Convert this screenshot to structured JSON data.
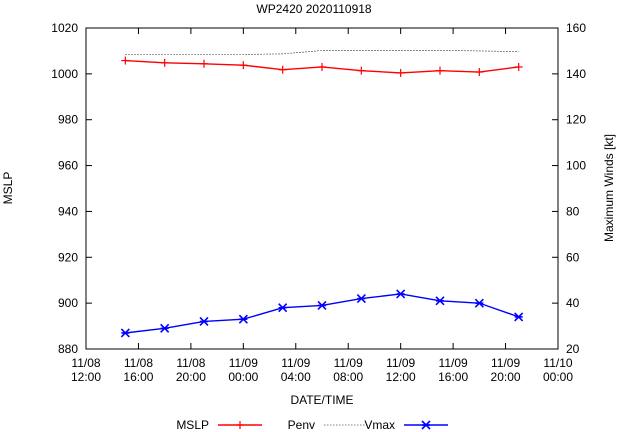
{
  "chart_data": {
    "type": "line",
    "title": "WP2420 2020110918",
    "xlabel": "DATE/TIME",
    "ylabel": "MSLP",
    "y2label": "Maximum Winds [kt]",
    "xlim": [
      "2020-11-08 12:00",
      "2020-11-10 00:00"
    ],
    "ylim": [
      880,
      1020
    ],
    "y2lim": [
      20,
      160
    ],
    "x_ticks": [
      {
        "time": "2020-11-08 12:00",
        "line1": "11/08",
        "line2": "12:00"
      },
      {
        "time": "2020-11-08 16:00",
        "line1": "11/08",
        "line2": "16:00"
      },
      {
        "time": "2020-11-08 20:00",
        "line1": "11/08",
        "line2": "20:00"
      },
      {
        "time": "2020-11-09 00:00",
        "line1": "11/09",
        "line2": "00:00"
      },
      {
        "time": "2020-11-09 04:00",
        "line1": "11/09",
        "line2": "04:00"
      },
      {
        "time": "2020-11-09 08:00",
        "line1": "11/09",
        "line2": "08:00"
      },
      {
        "time": "2020-11-09 12:00",
        "line1": "11/09",
        "line2": "12:00"
      },
      {
        "time": "2020-11-09 16:00",
        "line1": "11/09",
        "line2": "16:00"
      },
      {
        "time": "2020-11-09 20:00",
        "line1": "11/09",
        "line2": "20:00"
      },
      {
        "time": "2020-11-10 00:00",
        "line1": "11/10",
        "line2": "00:00"
      }
    ],
    "y_ticks": [
      880,
      900,
      920,
      940,
      960,
      980,
      1000,
      1020
    ],
    "y2_ticks": [
      20,
      40,
      60,
      80,
      100,
      120,
      140,
      160
    ],
    "x": [
      "2020-11-08 15:00",
      "2020-11-08 18:00",
      "2020-11-08 21:00",
      "2020-11-09 00:00",
      "2020-11-09 03:00",
      "2020-11-09 06:00",
      "2020-11-09 09:00",
      "2020-11-09 12:00",
      "2020-11-09 15:00",
      "2020-11-09 18:00",
      "2020-11-09 21:00"
    ],
    "series": [
      {
        "name": "MSLP",
        "axis": "y1",
        "color": "#ff0000",
        "marker": "plus",
        "values": [
          1005.8,
          1004.8,
          1004.4,
          1003.8,
          1001.8,
          1003.0,
          1001.4,
          1000.4,
          1001.4,
          1000.8,
          1003.0
        ]
      },
      {
        "name": "Penv",
        "axis": "y1",
        "color": "#000000",
        "dashed": true,
        "values": [
          1008.5,
          1008.5,
          1008.5,
          1008.5,
          1008.7,
          1010.2,
          1010.2,
          1010.2,
          1010.2,
          1010.0,
          1009.7
        ]
      },
      {
        "name": "Vmax",
        "axis": "y2",
        "color": "#0000ff",
        "marker": "star",
        "values": [
          27,
          29,
          32,
          33,
          38,
          39,
          42,
          44,
          41,
          40,
          34
        ]
      }
    ],
    "grid": false,
    "legend_position": "bottom"
  }
}
